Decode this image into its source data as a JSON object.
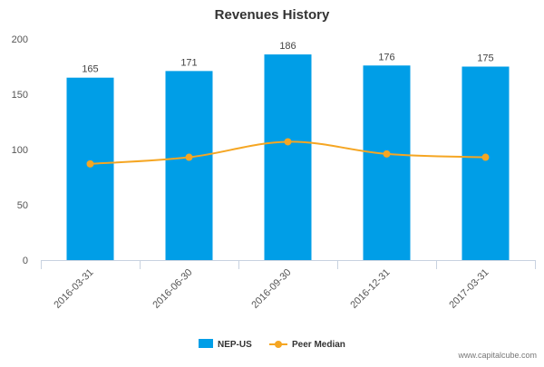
{
  "chart_data": {
    "type": "bar",
    "title": "Revenues History",
    "xlabel": "",
    "ylabel": "",
    "categories": [
      "2016-03-31",
      "2016-06-30",
      "2016-09-30",
      "2016-12-31",
      "2017-03-31"
    ],
    "series": [
      {
        "name": "NEP-US",
        "type": "bar",
        "color": "#009ee7",
        "values": [
          165,
          171,
          186,
          176,
          175
        ],
        "data_labels": [
          "165",
          "171",
          "186",
          "176",
          "175"
        ]
      },
      {
        "name": "Peer Median",
        "type": "line",
        "color": "#f5a623",
        "values": [
          87,
          93,
          107,
          96,
          93
        ]
      }
    ],
    "ylim": [
      0,
      200
    ],
    "yticks": [
      0,
      50,
      100,
      150,
      200
    ],
    "ytick_labels": [
      "0",
      "50",
      "100",
      "150",
      "200"
    ],
    "grid": false,
    "legend_position": "bottom-center"
  },
  "credit": "www.capitalcube.com"
}
